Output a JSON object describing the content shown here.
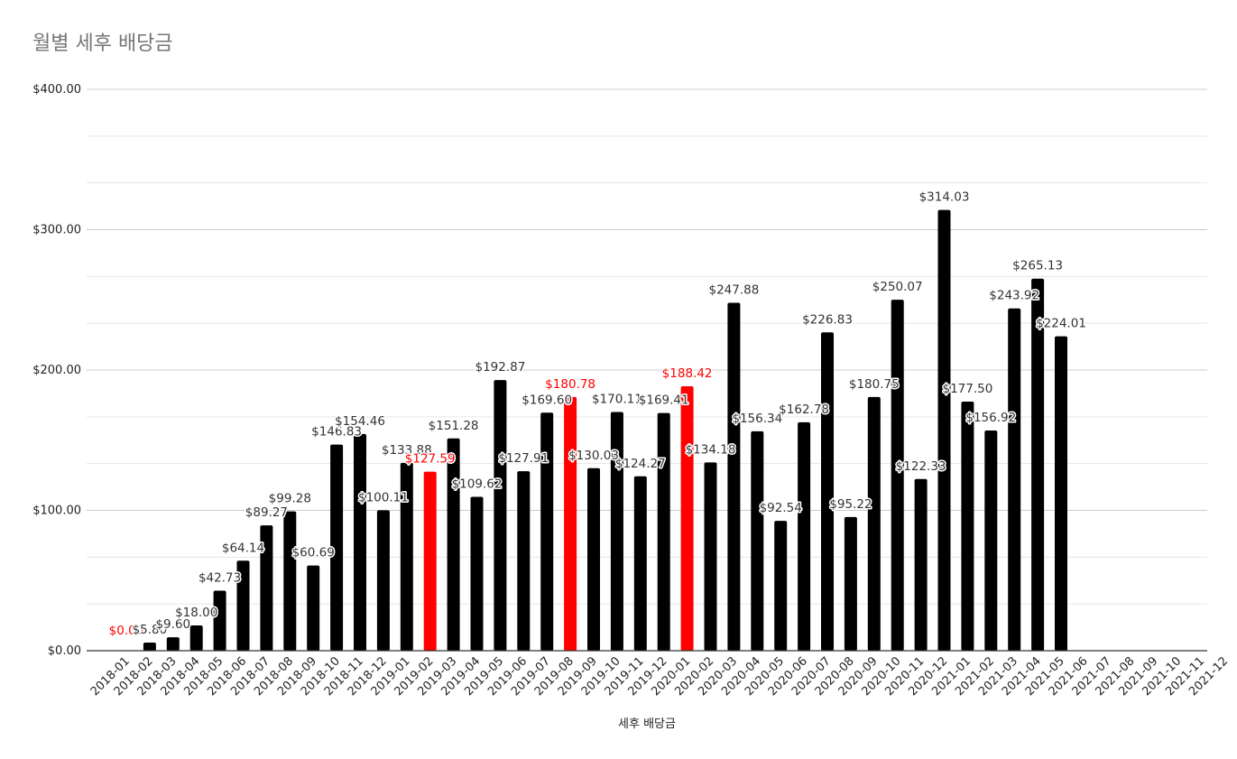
{
  "chart_data": {
    "type": "bar",
    "title": "월별 세후 배당금",
    "xlabel": "세후 배당금",
    "ylabel": "",
    "ylim": [
      0,
      400
    ],
    "yticks": [
      "$0.00",
      "$100.00",
      "$200.00",
      "$300.00",
      "$400.00"
    ],
    "grid": true,
    "categories": [
      "2018-01",
      "2018-02",
      "2018-03",
      "2018-04",
      "2018-05",
      "2018-06",
      "2018-07",
      "2018-08",
      "2018-09",
      "2018-10",
      "2018-11",
      "2018-12",
      "2019-01",
      "2019-02",
      "2019-03",
      "2019-04",
      "2019-05",
      "2019-06",
      "2019-07",
      "2019-08",
      "2019-09",
      "2019-10",
      "2019-11",
      "2019-12",
      "2020-01",
      "2020-02",
      "2020-03",
      "2020-04",
      "2020-05",
      "2020-06",
      "2020-07",
      "2020-08",
      "2020-09",
      "2020-10",
      "2020-11",
      "2020-12",
      "2021-01",
      "2021-02",
      "2021-03",
      "2021-04",
      "2021-05",
      "2021-06",
      "2021-07",
      "2021-08",
      "2021-09",
      "2021-10",
      "2021-11",
      "2021-12"
    ],
    "values": [
      0.0,
      5.8,
      9.6,
      18.0,
      42.73,
      64.14,
      89.27,
      99.28,
      60.69,
      146.83,
      154.46,
      100.11,
      133.88,
      127.59,
      151.28,
      109.62,
      192.87,
      127.91,
      169.6,
      180.78,
      130.03,
      170.11,
      124.27,
      169.41,
      188.42,
      134.18,
      247.88,
      156.34,
      92.54,
      162.78,
      226.83,
      95.22,
      180.75,
      250.07,
      122.33,
      314.03,
      177.5,
      156.92,
      243.92,
      265.13,
      224.01,
      null,
      null,
      null,
      null,
      null,
      null,
      null
    ],
    "labels": [
      "$0.00",
      "$5.80",
      "$9.60",
      "$18.00",
      "$42.73",
      "$64.14",
      "$89.27",
      "$99.28",
      "$60.69",
      "$146.83",
      "$154.46",
      "$100.11",
      "$133.88",
      "$127.59",
      "$151.28",
      "$109.62",
      "$192.87",
      "$127.91",
      "$169.60",
      "$180.78",
      "$130.03",
      "$170.11",
      "$124.27",
      "$169.41",
      "$188.42",
      "$134.18",
      "$247.88",
      "$156.34",
      "$92.54",
      "$162.78",
      "$226.83",
      "$95.22",
      "$180.75",
      "$250.07",
      "$122.33",
      "$314.03",
      "$177.50",
      "$156.92",
      "$243.92",
      "$265.13",
      "$224.01"
    ],
    "highlighted": [
      "2018-01",
      "2019-02",
      "2019-08",
      "2020-01"
    ],
    "colors": {
      "bar": "#000000",
      "highlight": "#ff0000",
      "grid": "#cccccc",
      "minor_grid": "#e6e6e6",
      "axis": "#333333"
    }
  }
}
